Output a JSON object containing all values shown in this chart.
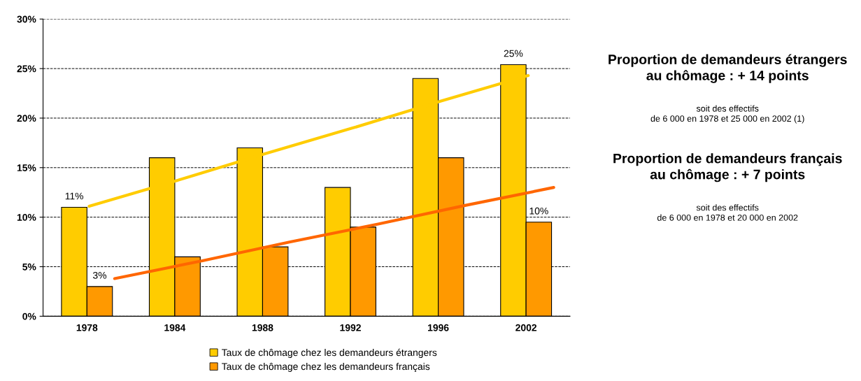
{
  "chart_data": {
    "type": "bar",
    "categories": [
      "1978",
      "1984",
      "1988",
      "1992",
      "1996",
      "2002"
    ],
    "series": [
      {
        "name": "Taux de chômage chez les demandeurs étrangers",
        "color": "#ffcc00",
        "values": [
          11,
          16,
          17,
          13,
          24,
          25.4
        ],
        "value_labels": [
          "11%",
          null,
          null,
          null,
          null,
          "25%"
        ]
      },
      {
        "name": "Taux de chômage chez les demandeurs français",
        "color": "#ff9900",
        "values": [
          3,
          6,
          7,
          9,
          16,
          9.5
        ],
        "value_labels": [
          "3%",
          null,
          null,
          null,
          null,
          "10%"
        ]
      },
      {
        "type": "line",
        "color": "#ffcc00",
        "values": [
          11.1,
          13.7,
          16.4,
          19.0,
          21.7,
          24.3
        ]
      },
      {
        "type": "line",
        "color": "#ff6600",
        "values": [
          3.8,
          5.6,
          7.5,
          9.3,
          11.2,
          13.0
        ]
      }
    ],
    "ylim": [
      0,
      30
    ],
    "yticks": [
      {
        "value": 0,
        "label": "0%"
      },
      {
        "value": 5,
        "label": "5%"
      },
      {
        "value": 10,
        "label": "10%"
      },
      {
        "value": 15,
        "label": "15%"
      },
      {
        "value": 20,
        "label": "20%"
      },
      {
        "value": 25,
        "label": "25%"
      },
      {
        "value": 30,
        "label": "30%"
      }
    ],
    "grid": "y",
    "legend": "bottom",
    "annotations": [
      "Proportion de demandeurs étrangers\nau chômage : + 14 points",
      "soit des effectifs\nde 6 000 en 1978 et 25 000 en 2002 (1)",
      "Proportion de demandeurs français\nau chômage : + 7 points",
      "soit des effectifs\nde 6 000 en 1978 et 20 000 en 2002"
    ]
  }
}
